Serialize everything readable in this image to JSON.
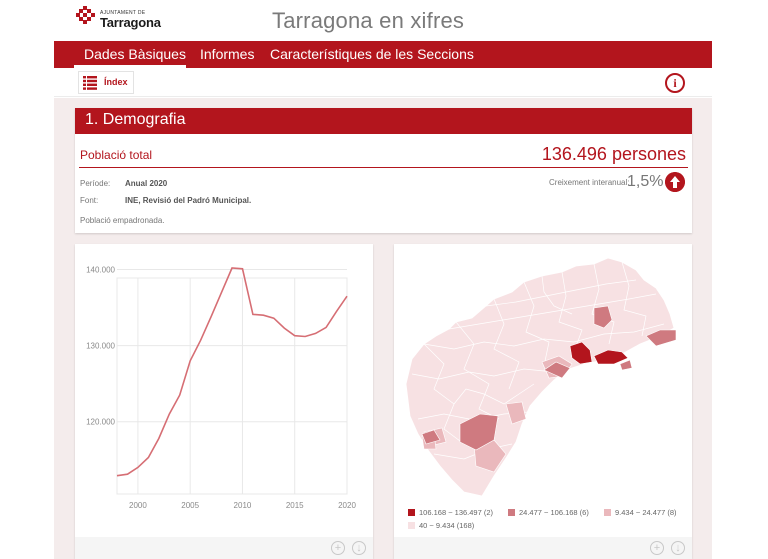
{
  "header": {
    "logo_small": "Ajuntament de",
    "logo_big": "Tarragona",
    "site_title": "Tarragona en xifres"
  },
  "nav": {
    "items": [
      "Dades Bàsiques",
      "Informes",
      "Característiques de les Seccions"
    ]
  },
  "toolbar": {
    "index_label": "Índex",
    "info_glyph": "i"
  },
  "section": {
    "title": "1. Demografia",
    "stat_label": "Població total",
    "stat_value": "136.496 persones",
    "period_key": "Període:",
    "period_val": "Anual 2020",
    "source_key": "Font:",
    "source_val": "INE, Revisió del Padró Municipal.",
    "growth_label": "Creixement interanual:",
    "growth_value": "1,5%",
    "note": "Població empadronada."
  },
  "colors": {
    "brand": "#b3151d",
    "map_c1": "#b3151d",
    "map_c2": "#cf7a80",
    "map_c3": "#eab8bc",
    "map_c4": "#f7e1e3"
  },
  "chart_data": {
    "type": "line",
    "x": [
      1998,
      1999,
      2000,
      2001,
      2002,
      2003,
      2004,
      2005,
      2006,
      2007,
      2008,
      2009,
      2010,
      2011,
      2012,
      2013,
      2014,
      2015,
      2016,
      2017,
      2018,
      2019,
      2020
    ],
    "series": [
      {
        "values": [
          112900,
          113100,
          114000,
          115300,
          117800,
          121000,
          123500,
          128000,
          130700,
          133800,
          137000,
          140200,
          140100,
          134100,
          134000,
          133600,
          132300,
          131300,
          131200,
          131600,
          132400,
          134500,
          136500
        ]
      }
    ],
    "yticks": [
      "140.000",
      "130.000",
      "120.000"
    ],
    "ytick_values": [
      140000,
      130000,
      120000
    ],
    "xticks": [
      "2000",
      "2005",
      "2010",
      "2015",
      "2020"
    ],
    "xtick_values": [
      2000,
      2005,
      2010,
      2015,
      2020
    ],
    "xlim": [
      1998,
      2020
    ],
    "ylim": [
      110500,
      140200
    ],
    "grid": true
  },
  "map": {
    "legend": [
      {
        "label": "106.168 ~ 136.497 (2)",
        "color": "#b3151d"
      },
      {
        "label": "24.477 ~ 106.168 (6)",
        "color": "#cf7a80"
      },
      {
        "label": "9.434 ~ 24.477 (8)",
        "color": "#eab8bc"
      },
      {
        "label": "40 ~ 9.434 (168)",
        "color": "#f7e1e3"
      }
    ]
  },
  "card_footer": {
    "zoom_glyph": "+",
    "download_glyph": "↓"
  }
}
